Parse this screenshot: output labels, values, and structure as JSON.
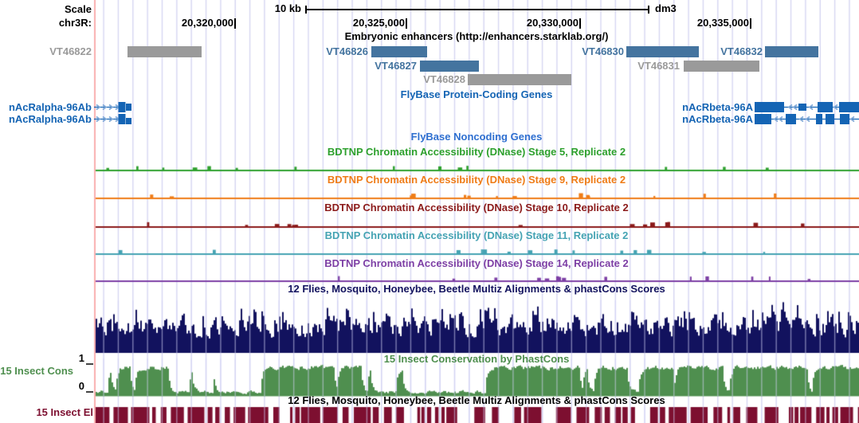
{
  "render": {
    "seed": 1337
  },
  "colors": {
    "grid": "#d6d6f2",
    "highlight_line": "#f9aeae",
    "enhancer_blue": "#44749f",
    "enhancer_gray": "#9a9a9a",
    "gene_blue": "#1464b4",
    "gene_arrow": "#7fa8d7",
    "noncoding_blue": "#2e6fd0",
    "stage5_green": "#2da02d",
    "stage9_orange": "#ef7c17",
    "stage10_darkred": "#8b1a1a",
    "stage11_teal": "#45a3b3",
    "stage14_purple": "#7d3fa5",
    "multiz_navy": "#12125e",
    "phastcons_green": "#4f8f4f",
    "elements_maroon": "#7d0f30",
    "title_black": "#000000"
  },
  "ruler": {
    "scale_label": "Scale",
    "chrom_label": "chr3R:",
    "scale_bar_label": "10 kb",
    "assembly": "dm3",
    "coordinates": [
      "20,320,000",
      "20,325,000",
      "20,330,000",
      "20,335,000"
    ]
  },
  "enhancers": {
    "title": "Embryonic enhancers (http://enhancers.starklab.org/)",
    "items": [
      {
        "label": "VT46822",
        "variant": "gray"
      },
      {
        "label": "VT46826",
        "variant": "blue"
      },
      {
        "label": "VT46827",
        "variant": "blue"
      },
      {
        "label": "VT46828",
        "variant": "gray"
      },
      {
        "label": "VT46830",
        "variant": "blue"
      },
      {
        "label": "VT46831",
        "variant": "gray"
      },
      {
        "label": "VT46832",
        "variant": "blue"
      }
    ]
  },
  "genes": {
    "coding_title": "FlyBase Protein-Coding Genes",
    "noncoding_title": "FlyBase Noncoding Genes",
    "left_gene_label": "nAcRalpha-96Ab",
    "right_gene_label": "nAcRbeta-96A"
  },
  "bdtnp_tracks": [
    {
      "title": "BDTNP Chromatin Accessibility (DNase) Stage 5, Replicate 2"
    },
    {
      "title": "BDTNP Chromatin Accessibility (DNase) Stage 9, Replicate 2"
    },
    {
      "title": "BDTNP Chromatin Accessibility (DNase) Stage 10, Replicate 2"
    },
    {
      "title": "BDTNP Chromatin Accessibility (DNase) Stage 11, Replicate 2"
    },
    {
      "title": "BDTNP Chromatin Accessibility (DNase) Stage 14, Replicate 2"
    }
  ],
  "conservation": {
    "multiz_title": "12 Flies, Mosquito, Honeybee, Beetle Multiz Alignments & phastCons Scores",
    "phastcons_title": "15 Insect Conservation by PhastCons",
    "phastcons_row_label": "15 Insect Cons",
    "axis_max": "1",
    "axis_min": "0",
    "multiz_title_2": "12 Flies, Mosquito, Honeybee, Beetle Multiz Alignments & phastCons Scores",
    "elements_row_label": "15 Insect El"
  }
}
